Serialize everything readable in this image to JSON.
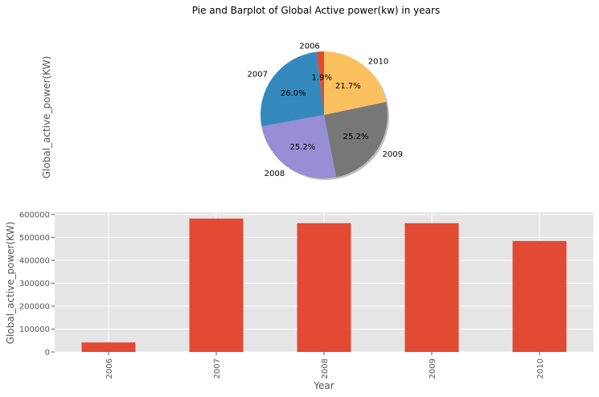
{
  "figure": {
    "suptitle": "Pie and Barplot of Global Active power(kw) in years"
  },
  "chart_data": [
    {
      "type": "pie",
      "ylabel": "Global_active_power(KW)",
      "labels": [
        "2006",
        "2007",
        "2008",
        "2009",
        "2010"
      ],
      "percent_labels": [
        "1.9%",
        "26.0%",
        "25.2%",
        "25.2%",
        "21.7%"
      ],
      "values": [
        1.9,
        26.0,
        25.2,
        25.2,
        21.7
      ],
      "start_angle_deg": 90,
      "direction": "counterclockwise",
      "shadow": true,
      "colors": [
        "#E24A33",
        "#348ABD",
        "#988ED5",
        "#777777",
        "#FBC15E"
      ]
    },
    {
      "type": "bar",
      "categories": [
        "2006",
        "2007",
        "2008",
        "2009",
        "2010"
      ],
      "values": [
        41800,
        582000,
        562000,
        562000,
        484000
      ],
      "xlabel": "Year",
      "ylabel": "Global_active_power(KW)",
      "ylim": [
        0,
        610000
      ],
      "yticks": [
        0,
        100000,
        200000,
        300000,
        400000,
        500000,
        600000
      ],
      "ytick_labels": [
        "0",
        "100000",
        "200000",
        "300000",
        "400000",
        "500000",
        "600000"
      ],
      "grid": true,
      "bar_color": "#E24A33",
      "background": "#E5E5E5"
    }
  ]
}
